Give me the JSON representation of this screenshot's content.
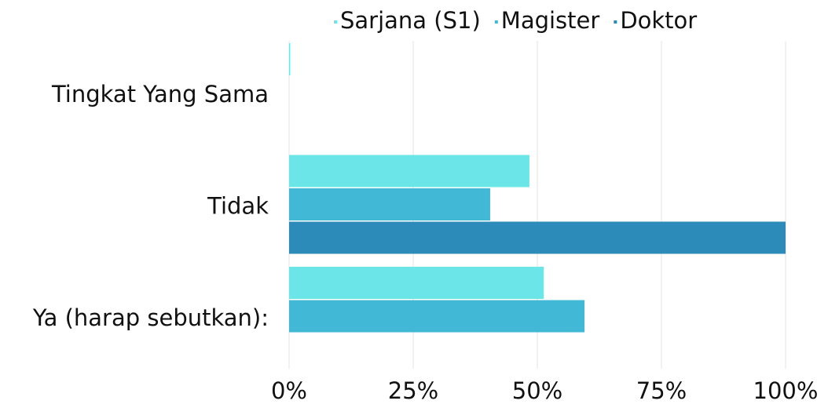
{
  "chart_data": {
    "type": "hbar",
    "categories": [
      "Tingkat Yang Sama",
      "Tidak",
      "Ya (harap sebutkan):"
    ],
    "series": [
      {
        "name": "Sarjana (S1)",
        "color": "#6ce5e8",
        "values": [
          0.2,
          48.4,
          51.3
        ]
      },
      {
        "name": "Magister",
        "color": "#41b8d5",
        "values": [
          0,
          40.5,
          59.5
        ]
      },
      {
        "name": "Doktor",
        "color": "#2d8bba",
        "values": [
          0,
          100,
          0
        ]
      }
    ],
    "xlim": [
      0,
      100
    ],
    "xticks": [
      {
        "value": 0,
        "label": "0%"
      },
      {
        "value": 25,
        "label": "25%"
      },
      {
        "value": 50,
        "label": "50%"
      },
      {
        "value": 75,
        "label": "75%"
      },
      {
        "value": 100,
        "label": "100%"
      }
    ],
    "grid": true,
    "legend": "top"
  }
}
